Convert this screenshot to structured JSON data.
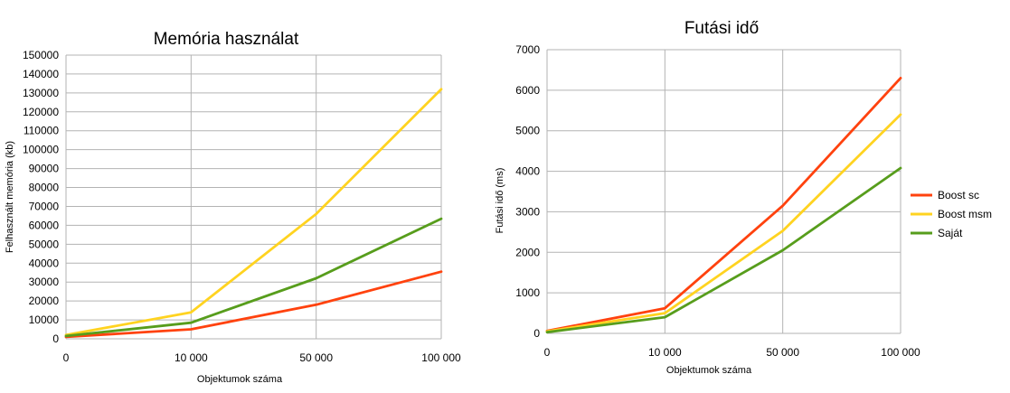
{
  "chart_data": [
    {
      "type": "line",
      "title": "Memória használat",
      "xlabel": "Objektumok száma",
      "ylabel": "Felhasznált memória (kb)",
      "categories": [
        "0",
        "10 000",
        "50 000",
        "100 000"
      ],
      "ylim": [
        0,
        150000
      ],
      "yticks": [
        "0",
        "10000",
        "20000",
        "30000",
        "40000",
        "50000",
        "60000",
        "70000",
        "80000",
        "90000",
        "100000",
        "110000",
        "120000",
        "130000",
        "140000",
        "150000"
      ],
      "grid": true,
      "legend": "none",
      "series": [
        {
          "name": "Boost sc",
          "color": "#ff420e",
          "values": [
            1000,
            5000,
            18000,
            35500
          ]
        },
        {
          "name": "Boost msm",
          "color": "#ffd320",
          "values": [
            2000,
            14000,
            66000,
            132000
          ]
        },
        {
          "name": "Saját",
          "color": "#579d1c",
          "values": [
            1500,
            8500,
            32000,
            63500
          ]
        }
      ]
    },
    {
      "type": "line",
      "title": "Futási idő",
      "xlabel": "Objektumok száma",
      "ylabel": "Futási idő (ms)",
      "categories": [
        "0",
        "10 000",
        "50 000",
        "100 000"
      ],
      "ylim": [
        0,
        7000
      ],
      "yticks": [
        "0",
        "1000",
        "2000",
        "3000",
        "4000",
        "5000",
        "6000",
        "7000"
      ],
      "grid": true,
      "legend": "right",
      "series": [
        {
          "name": "Boost sc",
          "color": "#ff420e",
          "values": [
            60,
            620,
            3150,
            6300
          ]
        },
        {
          "name": "Boost msm",
          "color": "#ffd320",
          "values": [
            50,
            500,
            2530,
            5400
          ]
        },
        {
          "name": "Saját",
          "color": "#579d1c",
          "values": [
            30,
            400,
            2050,
            4080
          ]
        }
      ]
    }
  ]
}
